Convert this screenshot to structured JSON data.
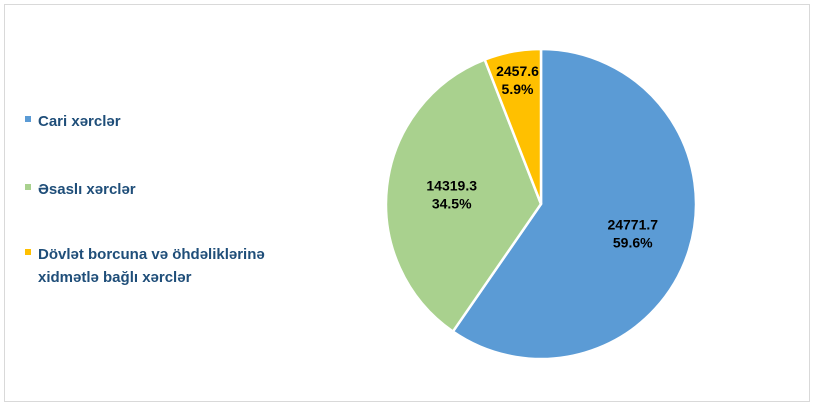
{
  "chart_data": {
    "type": "pie",
    "title": "",
    "legend_position": "left",
    "slices": [
      {
        "label": "Cari xərclər",
        "value": 24771.7,
        "percent": "59.6%",
        "value_text": "24771.7",
        "color": "#5b9bd5"
      },
      {
        "label": "Əsaslı xərclər",
        "value": 14319.3,
        "percent": "34.5%",
        "value_text": "14319.3",
        "color": "#a9d18e"
      },
      {
        "label": "Dövlət borcuna və öhdəliklərinə xidmətlə bağlı xərclər",
        "value": 2457.6,
        "percent": "5.9%",
        "value_text": "2457.6",
        "color": "#ffc000"
      }
    ],
    "start_angle_deg": 0,
    "direction": "clockwise"
  }
}
